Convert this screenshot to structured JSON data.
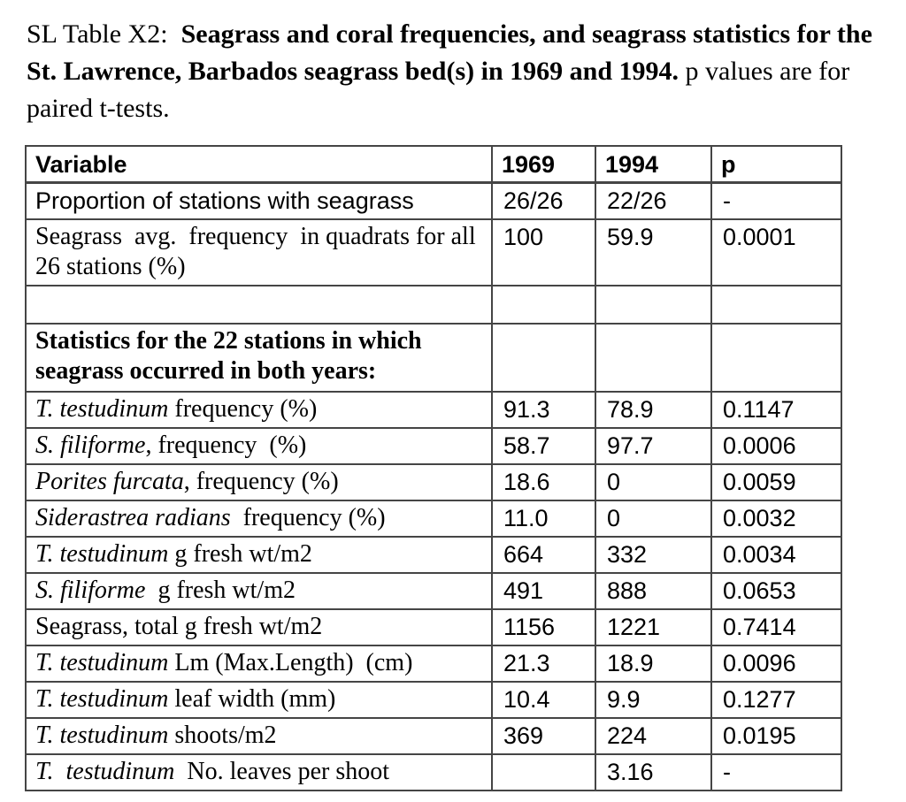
{
  "caption": {
    "prefix": "SL Table X2:  ",
    "bold": "Seagrass and coral frequencies, and seagrass statistics for the St. Lawrence, Barbados seagrass bed(s) in 1969 and 1994.",
    "suffix": " p values are for paired t-tests."
  },
  "table": {
    "columns": [
      "Variable",
      "1969",
      "1994",
      "p"
    ],
    "rows": [
      {
        "kind": "data",
        "font": "sans",
        "label": [
          {
            "t": "Proportion of stations with seagrass"
          }
        ],
        "v1969": "26/26",
        "v1994": "22/26",
        "p": "-"
      },
      {
        "kind": "data",
        "font": "serif",
        "label": [
          {
            "t": "Seagrass  avg.  frequency  in quadrats for all 26 stations (%)"
          }
        ],
        "v1969": "100",
        "v1994": "59.9",
        "p": "0.0001"
      },
      {
        "kind": "empty"
      },
      {
        "kind": "section",
        "label": [
          {
            "t": "Statistics for the 22 stations in which seagrass occurred in both years:"
          }
        ]
      },
      {
        "kind": "data",
        "font": "serif",
        "label": [
          {
            "t": "T. testudinum",
            "i": true
          },
          {
            "t": " frequency (%)"
          }
        ],
        "v1969": "91.3",
        "v1994": "78.9",
        "p": "0.1147"
      },
      {
        "kind": "data",
        "font": "serif",
        "label": [
          {
            "t": "S. filiforme",
            "i": true
          },
          {
            "t": ", frequency  (%)"
          }
        ],
        "v1969": "58.7",
        "v1994": "97.7",
        "p": "0.0006"
      },
      {
        "kind": "data",
        "font": "serif",
        "label": [
          {
            "t": "Porites furcata",
            "i": true
          },
          {
            "t": ", frequency (%)"
          }
        ],
        "v1969": "18.6",
        "v1994": "0",
        "p": "0.0059"
      },
      {
        "kind": "data",
        "font": "serif",
        "label": [
          {
            "t": "Siderastrea radians",
            "i": true
          },
          {
            "t": "  frequency (%)"
          }
        ],
        "v1969": "11.0",
        "v1994": "0",
        "p": "0.0032"
      },
      {
        "kind": "data",
        "font": "serif",
        "label": [
          {
            "t": "T. testudinum",
            "i": true
          },
          {
            "t": " g fresh wt/m2"
          }
        ],
        "v1969": "664",
        "v1994": "332",
        "p": "0.0034"
      },
      {
        "kind": "data",
        "font": "serif",
        "label": [
          {
            "t": "S. filiforme",
            "i": true
          },
          {
            "t": "  g fresh wt/m2"
          }
        ],
        "v1969": "491",
        "v1994": "888",
        "p": "0.0653"
      },
      {
        "kind": "data",
        "font": "serif",
        "label": [
          {
            "t": "Seagrass, total g fresh wt/m2"
          }
        ],
        "v1969": "1156",
        "v1994": "1221",
        "p": "0.7414"
      },
      {
        "kind": "data",
        "font": "serif",
        "label": [
          {
            "t": "T. testudinum",
            "i": true
          },
          {
            "t": " Lm (Max.Length)  (cm)"
          }
        ],
        "v1969": "21.3",
        "v1994": "18.9",
        "p": "0.0096"
      },
      {
        "kind": "data",
        "font": "serif",
        "label": [
          {
            "t": "T. testudinum",
            "i": true
          },
          {
            "t": " leaf width (mm)"
          }
        ],
        "v1969": "10.4",
        "v1994": "9.9",
        "p": "0.1277"
      },
      {
        "kind": "data",
        "font": "serif",
        "label": [
          {
            "t": "T. testudinum",
            "i": true
          },
          {
            "t": " shoots/m2"
          }
        ],
        "v1969": "369",
        "v1994": "224",
        "p": "0.0195"
      },
      {
        "kind": "data",
        "font": "serif",
        "label": [
          {
            "t": "T.  testudinum",
            "i": true
          },
          {
            "t": "  No. leaves per shoot"
          }
        ],
        "v1969": "",
        "v1994": "3.16",
        "p": "-"
      }
    ]
  }
}
